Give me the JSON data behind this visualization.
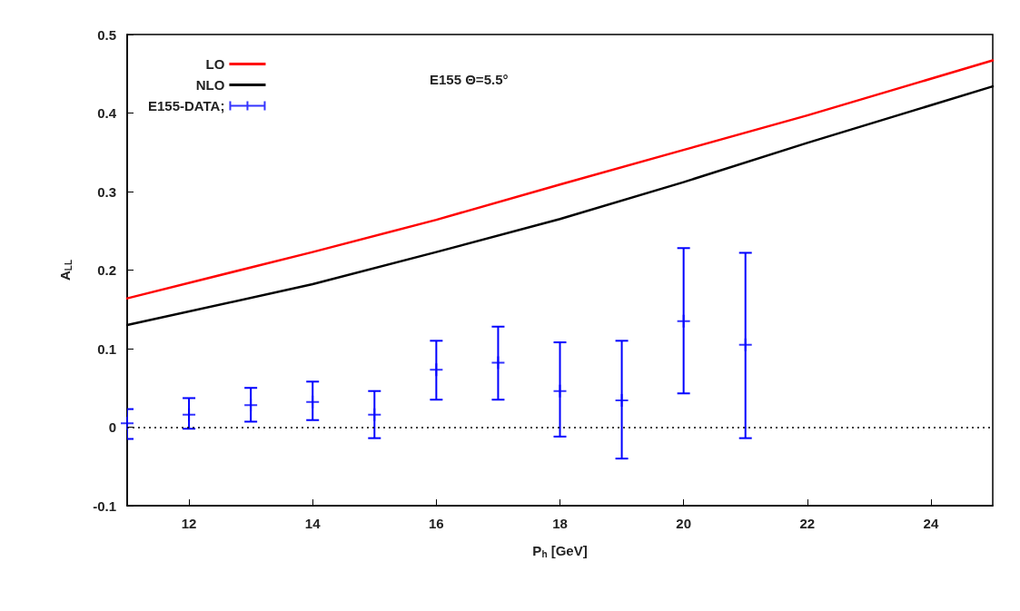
{
  "chart_data": {
    "type": "line",
    "xlabel": "P$_{h}$ [GeV]",
    "ylabel": "A$_{LL}$",
    "annotations": [
      "E155 Θ=5.5°"
    ],
    "xlim": [
      11,
      25
    ],
    "xticks": [
      12,
      14,
      16,
      18,
      20,
      22,
      24
    ],
    "ylim": [
      -0.1,
      0.5
    ],
    "yticks": [
      -0.1,
      0,
      0.1,
      0.2,
      0.3,
      0.4,
      0.5
    ],
    "grid": false,
    "legend": "top left",
    "ref_lines": [
      {
        "axis": "y",
        "value": 0,
        "color": "#000000",
        "line_style": "dotted"
      }
    ],
    "series": [
      {
        "name": "LO",
        "color": "#ff0000",
        "marker": "none",
        "line_style": "solid",
        "x": [
          11,
          14,
          16,
          18,
          20,
          22,
          25
        ],
        "values": [
          0.164,
          0.223,
          0.264,
          0.309,
          0.353,
          0.397,
          0.467
        ]
      },
      {
        "name": "NLO",
        "color": "#000000",
        "marker": "none",
        "line_style": "solid",
        "x": [
          11,
          14,
          16,
          18,
          20,
          22,
          25
        ],
        "values": [
          0.13,
          0.182,
          0.223,
          0.265,
          0.312,
          0.362,
          0.434
        ]
      },
      {
        "name": "E155-DATA;",
        "type": "scatter",
        "marker": "cross",
        "color": "#0000ff",
        "x": [
          11,
          12,
          13,
          14,
          15,
          16,
          17,
          18,
          19,
          20,
          21
        ],
        "values": [
          0.005,
          0.016,
          0.028,
          0.032,
          0.016,
          0.073,
          0.082,
          0.046,
          0.034,
          0.135,
          0.105
        ],
        "errors": [
          [
            -0.015,
            0.023
          ],
          [
            -0.002,
            0.037
          ],
          [
            0.007,
            0.05
          ],
          [
            0.009,
            0.058
          ],
          [
            -0.014,
            0.046
          ],
          [
            0.035,
            0.11
          ],
          [
            0.035,
            0.128
          ],
          [
            -0.012,
            0.108
          ],
          [
            -0.04,
            0.11
          ],
          [
            0.043,
            0.228
          ],
          [
            -0.014,
            0.222
          ]
        ]
      }
    ]
  }
}
